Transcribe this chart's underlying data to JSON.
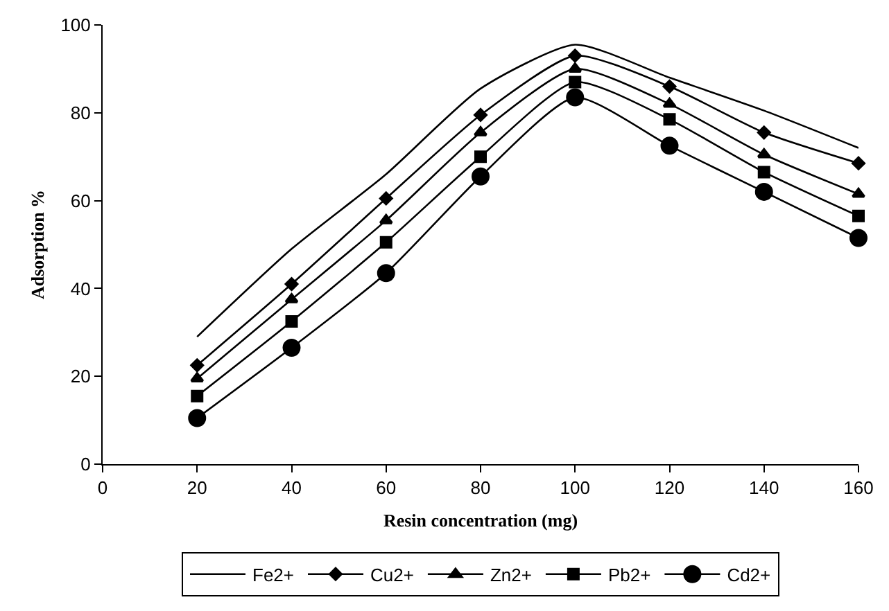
{
  "chart_data": {
    "type": "line",
    "xlabel": "Resin concentration (mg)",
    "ylabel": "Adsorption %",
    "x": [
      20,
      40,
      60,
      80,
      100,
      120,
      140,
      160
    ],
    "xlim": [
      0,
      160
    ],
    "xticks": [
      0,
      20,
      40,
      60,
      80,
      100,
      120,
      140,
      160
    ],
    "ylim": [
      0,
      100
    ],
    "yticks": [
      0,
      20,
      40,
      60,
      80,
      100
    ],
    "legend": "bottom",
    "line_style": "solid",
    "series": [
      {
        "name": "Fe2+",
        "color": "#000000",
        "marker": "none",
        "values": [
          29,
          49,
          66,
          85.5,
          95.5,
          88,
          80.5,
          72
        ]
      },
      {
        "name": "Cu2+",
        "color": "#000000",
        "marker": "diamond",
        "values": [
          22.5,
          41,
          60.5,
          79.5,
          93,
          86,
          75.5,
          68.5
        ]
      },
      {
        "name": "Zn2+",
        "color": "#000000",
        "marker": "triangle",
        "values": [
          19.5,
          37.5,
          55.5,
          75.5,
          90,
          82,
          70.5,
          61.5
        ]
      },
      {
        "name": "Pb2+",
        "color": "#000000",
        "marker": "square",
        "values": [
          15.5,
          32.5,
          50.5,
          70,
          87,
          78.5,
          66.5,
          56.5
        ]
      },
      {
        "name": "Cd2+",
        "color": "#000000",
        "marker": "circle",
        "values": [
          10.5,
          26.5,
          43.5,
          65.5,
          83.5,
          72.5,
          62,
          51.5
        ]
      }
    ]
  }
}
